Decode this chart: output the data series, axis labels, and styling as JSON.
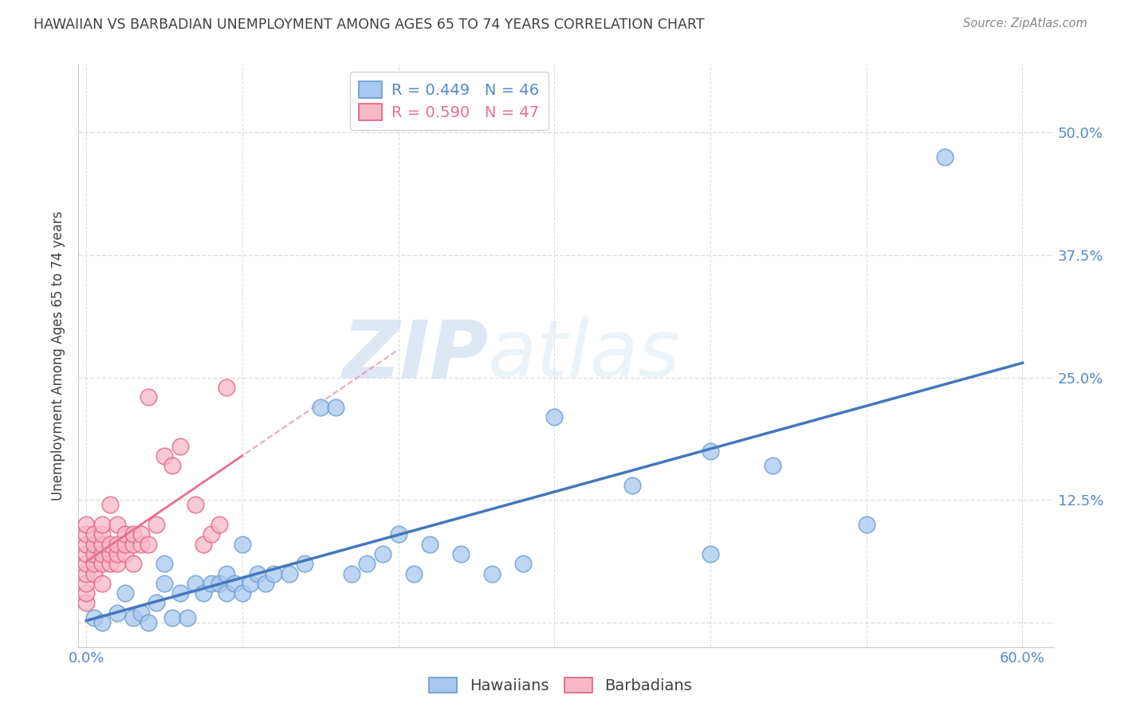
{
  "title": "HAWAIIAN VS BARBADIAN UNEMPLOYMENT AMONG AGES 65 TO 74 YEARS CORRELATION CHART",
  "source": "Source: ZipAtlas.com",
  "ylabel": "Unemployment Among Ages 65 to 74 years",
  "xlim": [
    -0.005,
    0.62
  ],
  "ylim": [
    -0.025,
    0.57
  ],
  "xtick_positions": [
    0.0,
    0.1,
    0.2,
    0.3,
    0.4,
    0.5,
    0.6
  ],
  "xticklabels": [
    "0.0%",
    "",
    "",
    "",
    "",
    "",
    "60.0%"
  ],
  "ytick_positions": [
    0.0,
    0.125,
    0.25,
    0.375,
    0.5
  ],
  "ytick_labels_right": [
    "",
    "12.5%",
    "25.0%",
    "37.5%",
    "50.0%"
  ],
  "watermark_zip": "ZIP",
  "watermark_atlas": "atlas",
  "legend_hawaiian": "R = 0.449   N = 46",
  "legend_barbadian": "R = 0.590   N = 47",
  "color_hawaiian_face": "#a8c8f0",
  "color_hawaiian_edge": "#6699cc",
  "color_barbadian_face": "#f8b8c8",
  "color_barbadian_edge": "#e06080",
  "color_line_hawaiian": "#4477bb",
  "color_line_barbadian": "#e87090",
  "color_line_barbadian_dashed": "#e8a0b0",
  "color_title": "#404040",
  "color_ticks_blue": "#5588cc",
  "color_grid": "#dddddd",
  "hawaiian_x": [
    0.005,
    0.01,
    0.02,
    0.025,
    0.03,
    0.035,
    0.04,
    0.045,
    0.05,
    0.05,
    0.055,
    0.06,
    0.065,
    0.07,
    0.075,
    0.08,
    0.085,
    0.09,
    0.09,
    0.095,
    0.1,
    0.1,
    0.105,
    0.11,
    0.115,
    0.12,
    0.13,
    0.14,
    0.15,
    0.16,
    0.17,
    0.18,
    0.19,
    0.2,
    0.21,
    0.22,
    0.24,
    0.26,
    0.28,
    0.3,
    0.35,
    0.4,
    0.4,
    0.44,
    0.5,
    0.55
  ],
  "hawaiian_y": [
    0.005,
    0.0,
    0.01,
    0.03,
    0.005,
    0.01,
    0.0,
    0.02,
    0.04,
    0.06,
    0.005,
    0.03,
    0.005,
    0.04,
    0.03,
    0.04,
    0.04,
    0.03,
    0.05,
    0.04,
    0.03,
    0.08,
    0.04,
    0.05,
    0.04,
    0.05,
    0.05,
    0.06,
    0.22,
    0.22,
    0.05,
    0.06,
    0.07,
    0.09,
    0.05,
    0.08,
    0.07,
    0.05,
    0.06,
    0.21,
    0.14,
    0.07,
    0.175,
    0.16,
    0.1,
    0.475
  ],
  "barbadian_x": [
    0.0,
    0.0,
    0.0,
    0.0,
    0.0,
    0.0,
    0.0,
    0.0,
    0.0,
    0.005,
    0.005,
    0.005,
    0.005,
    0.005,
    0.01,
    0.01,
    0.01,
    0.01,
    0.01,
    0.01,
    0.015,
    0.015,
    0.015,
    0.015,
    0.02,
    0.02,
    0.02,
    0.02,
    0.025,
    0.025,
    0.025,
    0.03,
    0.03,
    0.03,
    0.035,
    0.035,
    0.04,
    0.04,
    0.045,
    0.05,
    0.055,
    0.06,
    0.07,
    0.075,
    0.08,
    0.085,
    0.09
  ],
  "barbadian_y": [
    0.02,
    0.03,
    0.04,
    0.05,
    0.06,
    0.07,
    0.08,
    0.09,
    0.1,
    0.05,
    0.06,
    0.07,
    0.08,
    0.09,
    0.04,
    0.06,
    0.07,
    0.08,
    0.09,
    0.1,
    0.06,
    0.07,
    0.08,
    0.12,
    0.06,
    0.07,
    0.08,
    0.1,
    0.07,
    0.08,
    0.09,
    0.06,
    0.08,
    0.09,
    0.08,
    0.09,
    0.08,
    0.23,
    0.1,
    0.17,
    0.16,
    0.18,
    0.12,
    0.08,
    0.09,
    0.1,
    0.24
  ]
}
